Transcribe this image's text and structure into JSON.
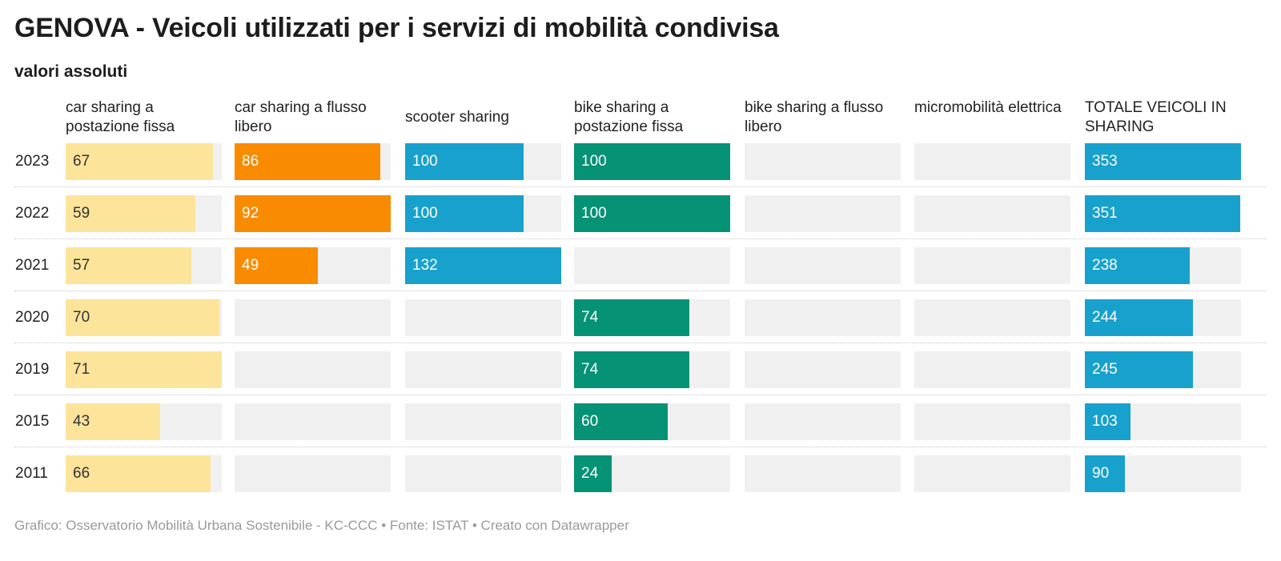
{
  "chart_data": {
    "type": "bar",
    "title": "GENOVA - Veicoli utilizzati per i servizi di mobilità condivisa",
    "subtitle": "valori assoluti",
    "categories": [
      "2023",
      "2022",
      "2021",
      "2020",
      "2019",
      "2015",
      "2011"
    ],
    "series": [
      {
        "name": "car sharing a postazione fissa",
        "color": "#fde49b",
        "max": 71,
        "values": [
          67,
          59,
          57,
          70,
          71,
          43,
          66
        ]
      },
      {
        "name": "car sharing a flusso libero",
        "color": "#f98b00",
        "max": 92,
        "values": [
          86,
          92,
          49,
          null,
          null,
          null,
          null
        ]
      },
      {
        "name": "scooter sharing",
        "color": "#18a1cd",
        "max": 132,
        "values": [
          100,
          100,
          132,
          null,
          null,
          null,
          null
        ]
      },
      {
        "name": "bike sharing a postazione fissa",
        "color": "#069274",
        "max": 100,
        "values": [
          100,
          100,
          null,
          74,
          74,
          60,
          24
        ]
      },
      {
        "name": "bike sharing a flusso libero",
        "color": "#18a1cd",
        "max": 100,
        "values": [
          null,
          null,
          null,
          null,
          null,
          null,
          null
        ]
      },
      {
        "name": "micromobilità elettrica",
        "color": "#18a1cd",
        "max": 100,
        "values": [
          null,
          null,
          null,
          null,
          null,
          null,
          null
        ]
      },
      {
        "name": "TOTALE VEICOLI IN SHARING",
        "color": "#18a1cd",
        "max": 353,
        "values": [
          353,
          351,
          238,
          244,
          245,
          103,
          90
        ]
      }
    ],
    "light_label_color": "#333333",
    "dark_label_color": "#ffffff"
  },
  "footer": "Grafico: Osservatorio Mobilità Urbana Sostenibile - KC-CCC • Fonte: ISTAT • Creato con Datawrapper"
}
